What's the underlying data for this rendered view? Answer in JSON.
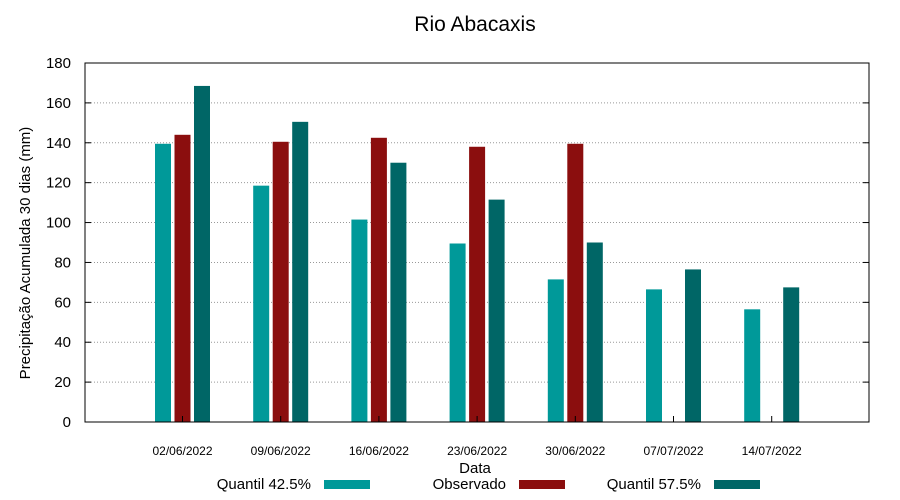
{
  "chart_data": {
    "type": "bar",
    "title": "Rio Abacaxis",
    "xlabel": "Data",
    "ylabel": "Precipitação Acumulada 30 dias (mm)",
    "ylim": [
      0,
      180
    ],
    "yticks": [
      0,
      20,
      40,
      60,
      80,
      100,
      120,
      140,
      160,
      180
    ],
    "grid": true,
    "legend_position": "bottom",
    "categories": [
      "02/06/2022",
      "09/06/2022",
      "16/06/2022",
      "23/06/2022",
      "30/06/2022",
      "07/07/2022",
      "14/07/2022"
    ],
    "series": [
      {
        "name": "Quantil 42.5%",
        "color": "#009999",
        "values": [
          139.5,
          118.5,
          101.5,
          89.5,
          71.5,
          66.5,
          56.5
        ]
      },
      {
        "name": "Observado",
        "color": "#8b0e0e",
        "values": [
          144,
          140.5,
          142.5,
          138,
          139.5,
          null,
          null
        ]
      },
      {
        "name": "Quantil 57.5%",
        "color": "#006666",
        "values": [
          168.5,
          150.5,
          130,
          111.5,
          90,
          76.5,
          67.5
        ]
      }
    ]
  }
}
